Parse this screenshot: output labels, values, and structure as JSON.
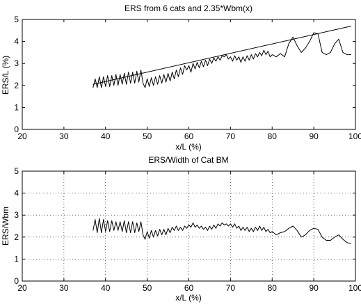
{
  "chart_data": [
    {
      "type": "line",
      "title": "ERS from 6 cats and 2.35*Wbm(x)",
      "xlabel": "x/L (%)",
      "ylabel": "ERS/L (%)",
      "xlim": [
        20,
        100
      ],
      "ylim": [
        0,
        5
      ],
      "xticks": [
        20,
        30,
        40,
        50,
        60,
        70,
        80,
        90,
        100
      ],
      "yticks": [
        0,
        1,
        2,
        3,
        4,
        5
      ],
      "grid": false,
      "series": [
        {
          "x": [
            37,
            37.5,
            38,
            38.5,
            39,
            39.5,
            40,
            40.5,
            41,
            41.5,
            42,
            42.5,
            43,
            43.5,
            44,
            44.5,
            45,
            45.5,
            46,
            46.5,
            47,
            47.5,
            48,
            48.5,
            49,
            49.5,
            50,
            50.5,
            51,
            51.5,
            52,
            52.5,
            53,
            53.5,
            54,
            54.5,
            55,
            55.5,
            56,
            56.5,
            57,
            57.5,
            58,
            58.5,
            59,
            59.5,
            60,
            60.5,
            61,
            61.5,
            62,
            62.5,
            63,
            63.5,
            64,
            64.5,
            65,
            65.5,
            66,
            66.5,
            67,
            67.5,
            68,
            68.5,
            69,
            69.5,
            70,
            70.5,
            71,
            71.5,
            72,
            72.5,
            73,
            73.5,
            74,
            74.5,
            75,
            75.5,
            76,
            76.5,
            77,
            77.5,
            78,
            78.5,
            79,
            79.5,
            80,
            81,
            82,
            83,
            84,
            85,
            86,
            87,
            88,
            89,
            90,
            91,
            92,
            93,
            94,
            95,
            96,
            97,
            98,
            99
          ],
          "values": [
            1.9,
            2.3,
            1.9,
            2.4,
            1.9,
            2.4,
            1.95,
            2.45,
            1.95,
            2.45,
            2.0,
            2.5,
            2.0,
            2.5,
            2.05,
            2.55,
            2.05,
            2.6,
            2.1,
            2.6,
            2.1,
            2.65,
            2.15,
            2.7,
            2.1,
            1.9,
            2.3,
            1.95,
            2.35,
            2.0,
            2.4,
            2.05,
            2.45,
            2.1,
            2.5,
            2.15,
            2.55,
            2.2,
            2.6,
            2.3,
            2.7,
            2.4,
            2.8,
            2.5,
            2.9,
            2.7,
            2.9,
            2.6,
            3.0,
            2.75,
            3.05,
            2.8,
            3.1,
            2.85,
            3.15,
            2.9,
            3.2,
            3.0,
            3.25,
            3.1,
            3.3,
            3.15,
            3.35,
            3.3,
            3.4,
            3.2,
            3.3,
            3.1,
            3.35,
            3.15,
            3.3,
            3.05,
            3.3,
            3.1,
            3.35,
            3.15,
            3.4,
            3.2,
            3.45,
            3.3,
            3.5,
            3.35,
            3.6,
            3.4,
            3.55,
            3.3,
            3.4,
            3.3,
            3.45,
            3.3,
            3.9,
            4.2,
            3.8,
            3.5,
            3.7,
            4.0,
            4.4,
            4.35,
            3.5,
            3.4,
            3.5,
            3.9,
            4.1,
            3.5,
            3.4,
            3.4
          ]
        },
        {
          "x": [
            37,
            99
          ],
          "values": [
            2.05,
            4.7
          ]
        }
      ]
    },
    {
      "type": "line",
      "title": "ERS/Width of Cat BM",
      "xlabel": "x/L (%)",
      "ylabel": "ERS/Wbm",
      "xlim": [
        20,
        100
      ],
      "ylim": [
        0,
        5
      ],
      "xticks": [
        20,
        30,
        40,
        50,
        60,
        70,
        80,
        90,
        100
      ],
      "yticks": [
        0,
        1,
        2,
        3,
        4,
        5
      ],
      "grid": true,
      "series": [
        {
          "x": [
            37,
            37.5,
            38,
            38.5,
            39,
            39.5,
            40,
            40.5,
            41,
            41.5,
            42,
            42.5,
            43,
            43.5,
            44,
            44.5,
            45,
            45.5,
            46,
            46.5,
            47,
            47.5,
            48,
            48.5,
            49,
            49.5,
            50,
            50.5,
            51,
            51.5,
            52,
            52.5,
            53,
            53.5,
            54,
            54.5,
            55,
            55.5,
            56,
            56.5,
            57,
            57.5,
            58,
            58.5,
            59,
            59.5,
            60,
            60.5,
            61,
            61.5,
            62,
            62.5,
            63,
            63.5,
            64,
            64.5,
            65,
            65.5,
            66,
            66.5,
            67,
            67.5,
            68,
            68.5,
            69,
            69.5,
            70,
            70.5,
            71,
            71.5,
            72,
            72.5,
            73,
            73.5,
            74,
            74.5,
            75,
            75.5,
            76,
            76.5,
            77,
            77.5,
            78,
            78.5,
            79,
            79.5,
            80,
            81,
            82,
            83,
            84,
            85,
            86,
            87,
            88,
            89,
            90,
            91,
            92,
            93,
            94,
            95,
            96,
            97,
            98,
            99
          ],
          "values": [
            2.3,
            2.8,
            2.2,
            2.85,
            2.2,
            2.8,
            2.25,
            2.75,
            2.25,
            2.75,
            2.3,
            2.7,
            2.3,
            2.7,
            2.25,
            2.75,
            2.2,
            2.7,
            2.2,
            2.7,
            2.2,
            2.65,
            2.25,
            2.7,
            2.1,
            1.9,
            2.25,
            1.95,
            2.3,
            2.0,
            2.3,
            2.05,
            2.35,
            2.1,
            2.35,
            2.1,
            2.4,
            2.2,
            2.45,
            2.3,
            2.5,
            2.3,
            2.45,
            2.3,
            2.5,
            2.4,
            2.55,
            2.45,
            2.65,
            2.45,
            2.55,
            2.4,
            2.5,
            2.35,
            2.45,
            2.3,
            2.5,
            2.35,
            2.55,
            2.4,
            2.6,
            2.5,
            2.65,
            2.55,
            2.6,
            2.5,
            2.6,
            2.45,
            2.6,
            2.4,
            2.5,
            2.3,
            2.45,
            2.3,
            2.45,
            2.25,
            2.4,
            2.25,
            2.45,
            2.3,
            2.5,
            2.3,
            2.45,
            2.25,
            2.35,
            2.2,
            2.25,
            2.1,
            2.2,
            2.25,
            2.4,
            2.5,
            2.3,
            2.0,
            2.1,
            2.3,
            2.4,
            2.35,
            2.0,
            1.85,
            1.85,
            2.0,
            2.1,
            1.9,
            1.75,
            1.7
          ]
        }
      ]
    }
  ]
}
